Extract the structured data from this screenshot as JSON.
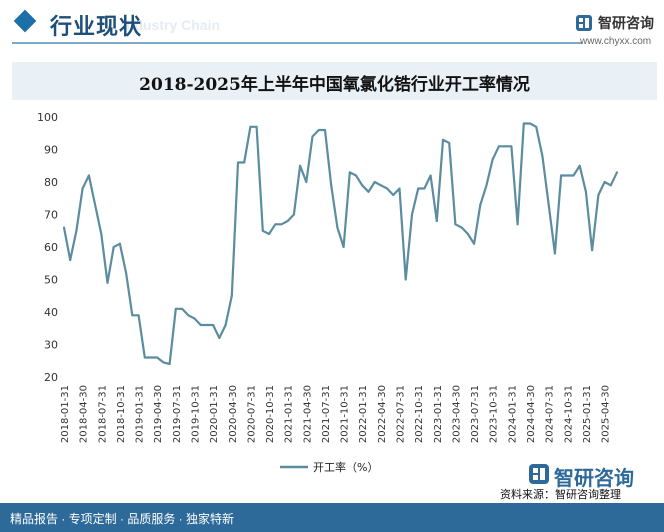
{
  "header": {
    "title": "行业现状",
    "subtitle": "Industry Chain",
    "logo_name": "智研咨询",
    "logo_url": "www.chyxx.com"
  },
  "footer": {
    "left_text": "精品报告 · 专项定制 · 品质服务 · 独家特新",
    "source": "资料来源：智研咨询整理",
    "brand": "智研咨询"
  },
  "colors": {
    "line": "#5b8ca0",
    "accent": "#2d6a9a"
  },
  "chart_data": {
    "type": "line",
    "title": "2018-2025年上半年中国氧氯化锆行业开工率情况",
    "xlabel": "",
    "ylabel": "",
    "ylim": [
      20,
      100
    ],
    "yticks": [
      20,
      30,
      40,
      50,
      60,
      70,
      80,
      90,
      100
    ],
    "legend": "开工率（%）",
    "legend_position": "bottom",
    "x_tick_labels": [
      "2018-01-31",
      "2018-04-30",
      "2018-07-31",
      "2018-10-31",
      "2019-01-31",
      "2019-04-30",
      "2019-07-31",
      "2019-10-31",
      "2020-01-31",
      "2020-04-30",
      "2020-07-31",
      "2020-10-31",
      "2021-01-31",
      "2021-04-30",
      "2021-07-31",
      "2021-10-31",
      "2022-01-31",
      "2022-04-30",
      "2022-07-31",
      "2022-10-31",
      "2023-01-31",
      "2023-04-30",
      "2023-07-31",
      "2023-10-31",
      "2024-01-31",
      "2024-04-30",
      "2024-07-31",
      "2024-10-31",
      "2025-01-31",
      "2025-04-30"
    ],
    "series": [
      {
        "name": "开工率（%）",
        "values": [
          66,
          56,
          65,
          78,
          82,
          73,
          64,
          49,
          60,
          61,
          52,
          39,
          39,
          26,
          26,
          26,
          24.5,
          24,
          41,
          41,
          39,
          38,
          36,
          36,
          36,
          32,
          36,
          45,
          86,
          86,
          97,
          97,
          65,
          64,
          67,
          67,
          68,
          70,
          85,
          80,
          94,
          96,
          96,
          79,
          66,
          60,
          83,
          82,
          79,
          77,
          80,
          79,
          78,
          76,
          78,
          50,
          70,
          78,
          78,
          82,
          68,
          93,
          92,
          67,
          66,
          64,
          61,
          73,
          79,
          87,
          91,
          91,
          91,
          67,
          98,
          98,
          97,
          88,
          73,
          58,
          82,
          82,
          82,
          85,
          77,
          59,
          76,
          80,
          79,
          83
        ]
      }
    ]
  }
}
